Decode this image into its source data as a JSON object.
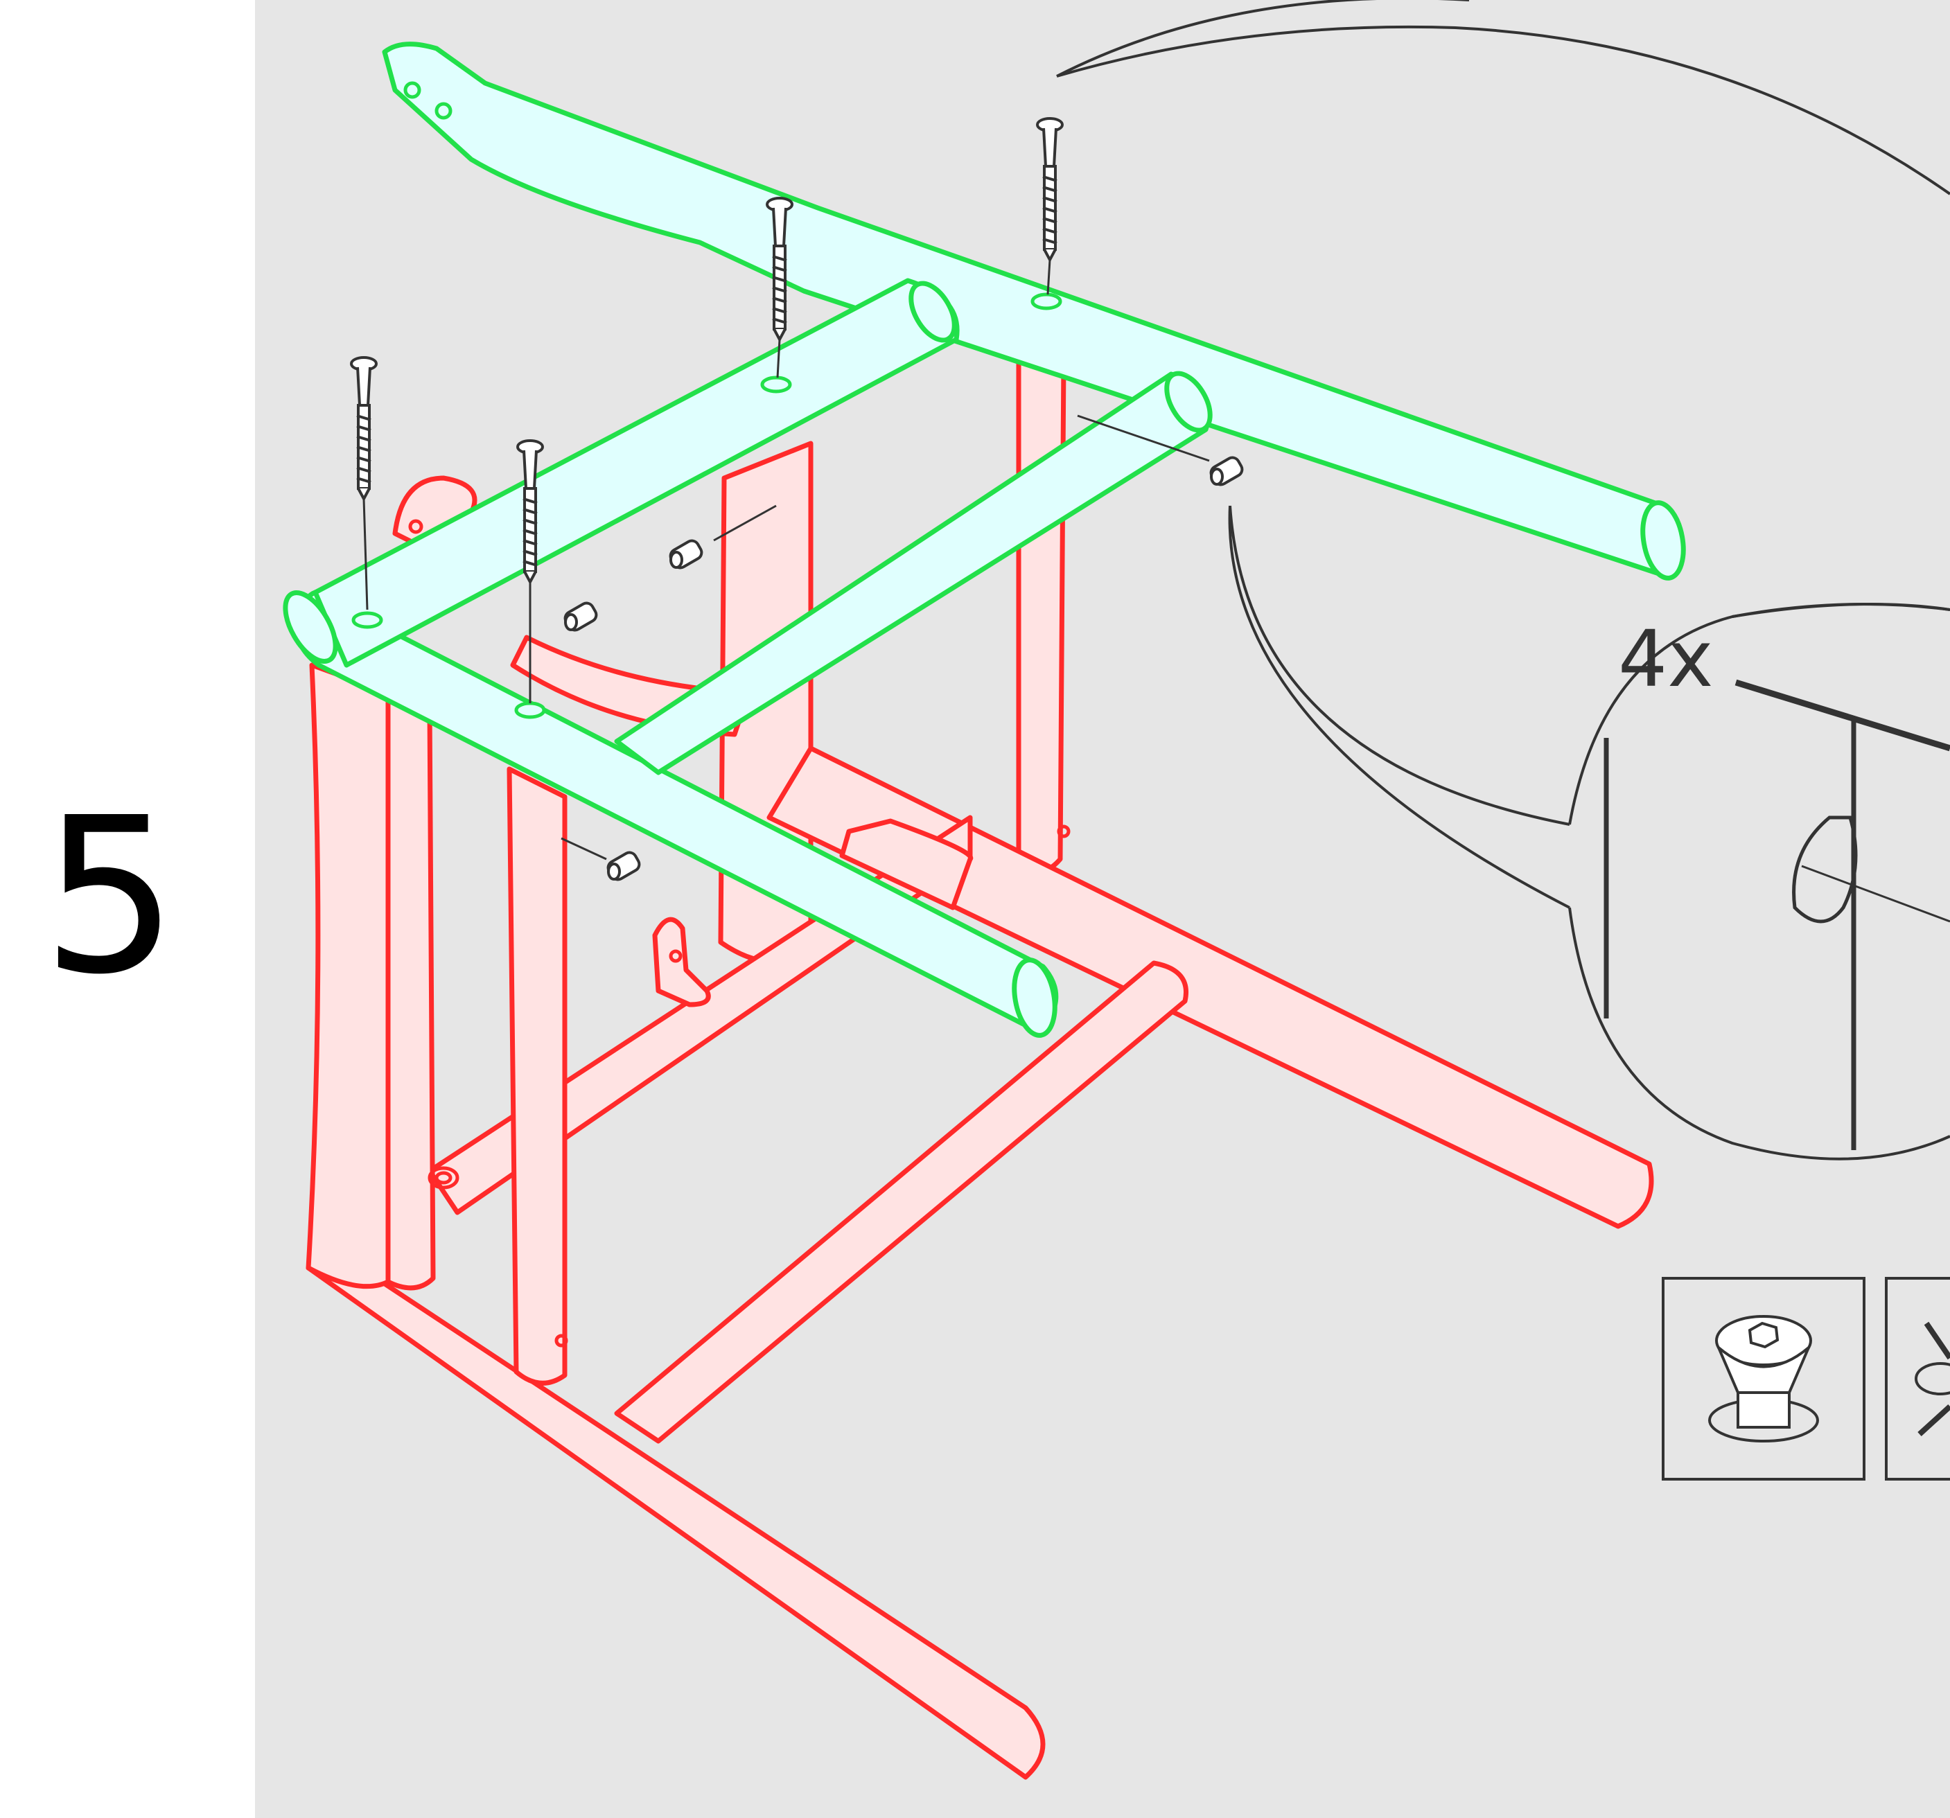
{
  "step": {
    "number": "5"
  },
  "detail": {
    "quantity_label": "4x"
  },
  "colors": {
    "background_panel": "#e6e6e6",
    "new_part_outline": "#22e04a",
    "new_part_fill": "#e0fffe",
    "existing_part_outline": "#ff2a2a",
    "existing_part_fill": "#ffe3e3",
    "line_art": "#333333"
  },
  "icons": [
    "bolt-icon",
    "screw-icon",
    "barrel-nut-icon",
    "hex-head-countersink-icon",
    "no-overtighten-icon"
  ]
}
